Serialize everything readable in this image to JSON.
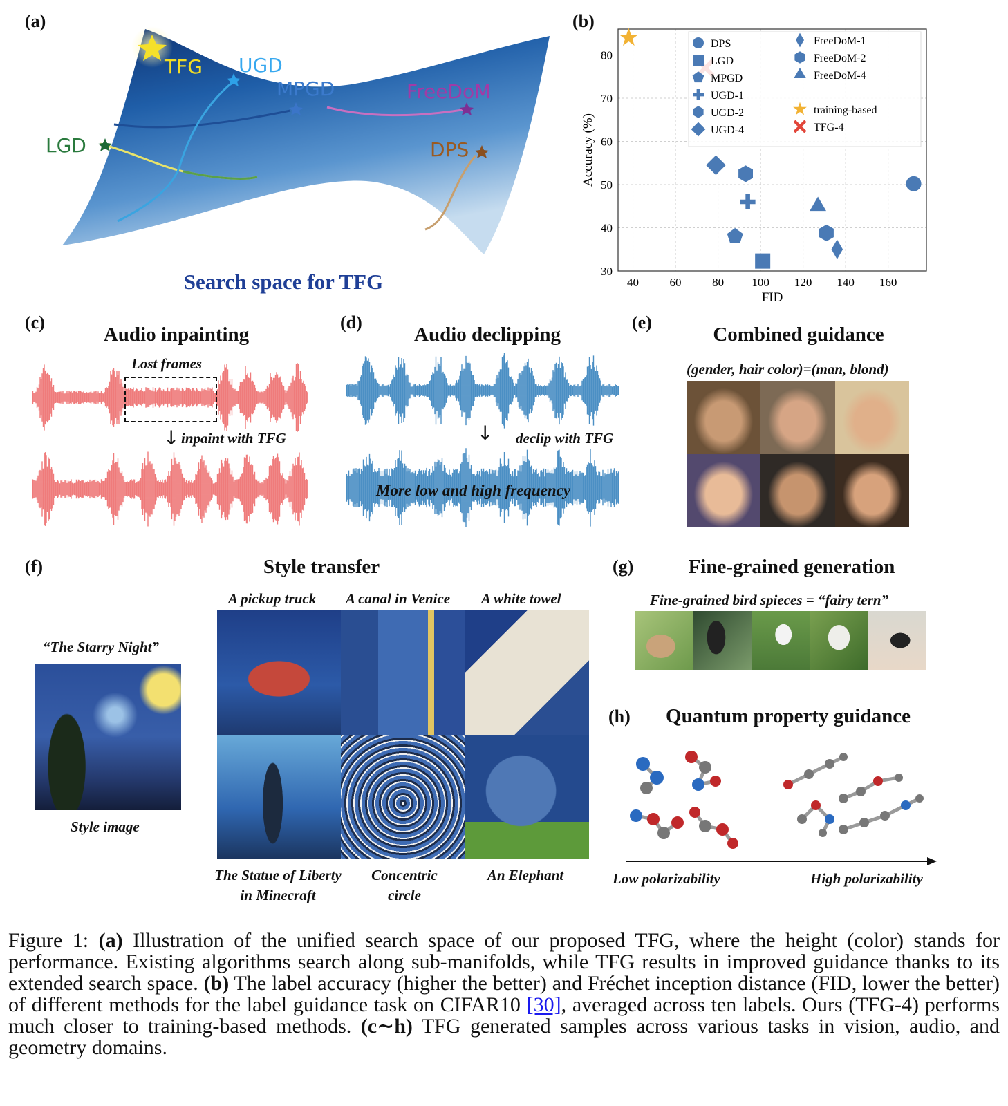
{
  "panels": {
    "a": {
      "label": "(a)",
      "title": "Search space for TFG",
      "labels": {
        "tfg": "TFG",
        "ugd": "UGD",
        "mpgd": "MPGD",
        "freedom": "FreeDoM",
        "lgd": "LGD",
        "dps": "DPS"
      }
    },
    "b": {
      "label": "(b)"
    },
    "c": {
      "label": "(c)",
      "title": "Audio inpainting",
      "lost": "Lost frames",
      "arrow_text": "inpaint with TFG"
    },
    "d": {
      "label": "(d)",
      "title": "Audio declipping",
      "arrow_text": "declip with TFG",
      "overlay": "More low and high frequency"
    },
    "e": {
      "label": "(e)",
      "title": "Combined guidance",
      "subtitle": "(gender, hair color)=(man, blond)"
    },
    "f": {
      "label": "(f)",
      "title": "Style transfer",
      "style_name": "“The Starry Night”",
      "style_caption": "Style image",
      "top_captions": [
        "A pickup truck",
        "A canal in Venice",
        "A white towel"
      ],
      "bottom_captions": [
        "The Statue of Liberty\nin Minecraft",
        "Concentric\ncircle",
        "An Elephant"
      ]
    },
    "g": {
      "label": "(g)",
      "title": "Fine-grained generation",
      "subtitle": "Fine-grained bird spieces = “fairy tern”"
    },
    "h": {
      "label": "(h)",
      "title": "Quantum property guidance",
      "low": "Low polarizability",
      "high": "High polarizability"
    }
  },
  "chart_data": {
    "type": "scatter",
    "xlabel": "FID",
    "ylabel": "Accuracy (%)",
    "xlim": [
      33,
      178
    ],
    "ylim": [
      30,
      86
    ],
    "xticks": [
      40,
      60,
      80,
      100,
      120,
      140,
      160
    ],
    "yticks": [
      30,
      40,
      50,
      60,
      70,
      80
    ],
    "grid": true,
    "legend_position": "top-right",
    "series": [
      {
        "name": "DPS",
        "marker": "circle",
        "color": "#4a7ab5",
        "x": 172,
        "y": 50.2
      },
      {
        "name": "LGD",
        "marker": "square",
        "color": "#4a7ab5",
        "x": 101,
        "y": 32.3
      },
      {
        "name": "MPGD",
        "marker": "pentagon",
        "color": "#4a7ab5",
        "x": 88,
        "y": 38
      },
      {
        "name": "UGD-1",
        "marker": "plus",
        "color": "#4a7ab5",
        "x": 94,
        "y": 46
      },
      {
        "name": "UGD-2",
        "marker": "hexagon",
        "color": "#4a7ab5",
        "x": 93,
        "y": 52.5
      },
      {
        "name": "UGD-4",
        "marker": "diamond",
        "color": "#4a7ab5",
        "x": 79,
        "y": 54.5
      },
      {
        "name": "FreeDoM-1",
        "marker": "thin_diamond",
        "color": "#4a7ab5",
        "x": 136,
        "y": 35
      },
      {
        "name": "FreeDoM-2",
        "marker": "hexagon",
        "color": "#4a7ab5",
        "x": 131,
        "y": 38.8
      },
      {
        "name": "FreeDoM-4",
        "marker": "triangle",
        "color": "#4a7ab5",
        "x": 127,
        "y": 45
      },
      {
        "name": "training-based",
        "marker": "star",
        "color": "#f2b233",
        "x": 38,
        "y": 84
      },
      {
        "name": "TFG-4",
        "marker": "x",
        "color": "#e2463a",
        "x": 74,
        "y": 77
      }
    ]
  },
  "caption": {
    "prefix": "Figure 1: ",
    "a_tag": "(a)",
    "a_text": " Illustration of the unified search space of our proposed TFG, where the height (color) stands for performance.  Existing algorithms search along sub-manifolds, while TFG results in improved guidance thanks to its extended search space. ",
    "b_tag": "(b)",
    "b_text1": " The label accuracy (higher the better) and Fréchet inception distance (FID, lower the better) of different methods for the label guidance task on CIFAR10 ",
    "ref": "[30]",
    "b_text2": ", averaged across ten labels.  Ours (TFG-4) performs much closer to training-based methods. ",
    "ch_tag": "(c∼h)",
    "ch_text": " TFG generated samples across various tasks in vision, audio, and geometry domains."
  }
}
